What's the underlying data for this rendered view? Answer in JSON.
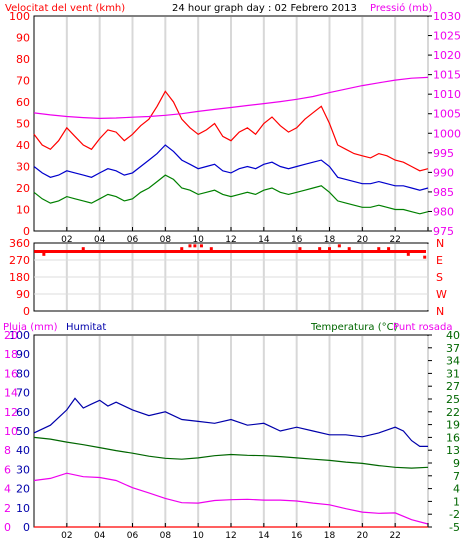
{
  "chart_data": [
    {
      "type": "line",
      "title": "24 hour graph day : 02 Febrero 2013",
      "left_axis_label": "Velocitat del vent (kmh)",
      "right_axis_label": "Pressió (mb)",
      "ylim_left": [
        0,
        100
      ],
      "ylim_right": [
        975,
        1030
      ],
      "left_ticks": [
        "0",
        "10",
        "20",
        "30",
        "40",
        "50",
        "60",
        "70",
        "80",
        "90",
        "100"
      ],
      "right_ticks": [
        "975",
        "980",
        "985",
        "990",
        "995",
        "1000",
        "1005",
        "1010",
        "1015",
        "1020",
        "1025",
        "1030"
      ],
      "x_ticks": [
        "02",
        "04",
        "06",
        "08",
        "10",
        "12",
        "14",
        "16",
        "18",
        "20",
        "22",
        ""
      ],
      "x_range_hours": [
        0,
        24
      ],
      "grid": true,
      "series": [
        {
          "key": "gust",
          "color": "#ff0000",
          "axis": "left",
          "x": [
            0,
            0.5,
            1,
            1.5,
            2,
            2.5,
            3,
            3.5,
            4,
            4.5,
            5,
            5.5,
            6,
            6.5,
            7,
            7.5,
            8,
            8.5,
            9,
            9.5,
            10,
            10.5,
            11,
            11.5,
            12,
            12.5,
            13,
            13.5,
            14,
            14.5,
            15,
            15.5,
            16,
            16.5,
            17,
            17.5,
            18,
            18.5,
            19,
            19.5,
            20,
            20.5,
            21,
            21.5,
            22,
            22.5,
            23,
            23.5,
            24
          ],
          "values": [
            45,
            40,
            38,
            42,
            48,
            44,
            40,
            38,
            43,
            47,
            46,
            42,
            45,
            49,
            52,
            58,
            65,
            60,
            52,
            48,
            45,
            47,
            50,
            44,
            42,
            46,
            48,
            45,
            50,
            53,
            49,
            46,
            48,
            52,
            55,
            58,
            50,
            40,
            38,
            36,
            35,
            34,
            36,
            35,
            33,
            32,
            30,
            28,
            29
          ]
        },
        {
          "key": "wind",
          "color": "#0000cc",
          "axis": "left",
          "x": [
            0,
            0.5,
            1,
            1.5,
            2,
            2.5,
            3,
            3.5,
            4,
            4.5,
            5,
            5.5,
            6,
            6.5,
            7,
            7.5,
            8,
            8.5,
            9,
            9.5,
            10,
            10.5,
            11,
            11.5,
            12,
            12.5,
            13,
            13.5,
            14,
            14.5,
            15,
            15.5,
            16,
            16.5,
            17,
            17.5,
            18,
            18.5,
            19,
            19.5,
            20,
            20.5,
            21,
            21.5,
            22,
            22.5,
            23,
            23.5,
            24
          ],
          "values": [
            30,
            27,
            25,
            26,
            28,
            27,
            26,
            25,
            27,
            29,
            28,
            26,
            27,
            30,
            33,
            36,
            40,
            37,
            33,
            31,
            29,
            30,
            31,
            28,
            27,
            29,
            30,
            29,
            31,
            32,
            30,
            29,
            30,
            31,
            32,
            33,
            30,
            25,
            24,
            23,
            22,
            22,
            23,
            22,
            21,
            21,
            20,
            19,
            20
          ]
        },
        {
          "key": "wind_low",
          "color": "#008000",
          "axis": "left",
          "x": [
            0,
            0.5,
            1,
            1.5,
            2,
            2.5,
            3,
            3.5,
            4,
            4.5,
            5,
            5.5,
            6,
            6.5,
            7,
            7.5,
            8,
            8.5,
            9,
            9.5,
            10,
            10.5,
            11,
            11.5,
            12,
            12.5,
            13,
            13.5,
            14,
            14.5,
            15,
            15.5,
            16,
            16.5,
            17,
            17.5,
            18,
            18.5,
            19,
            19.5,
            20,
            20.5,
            21,
            21.5,
            22,
            22.5,
            23,
            23.5,
            24
          ],
          "values": [
            18,
            15,
            13,
            14,
            16,
            15,
            14,
            13,
            15,
            17,
            16,
            14,
            15,
            18,
            20,
            23,
            26,
            24,
            20,
            19,
            17,
            18,
            19,
            17,
            16,
            17,
            18,
            17,
            19,
            20,
            18,
            17,
            18,
            19,
            20,
            21,
            18,
            14,
            13,
            12,
            11,
            11,
            12,
            11,
            10,
            10,
            9,
            8,
            9
          ]
        },
        {
          "key": "pressure",
          "color": "#ee00ee",
          "axis": "right",
          "x": [
            0,
            1,
            2,
            3,
            4,
            5,
            6,
            7,
            8,
            9,
            10,
            11,
            12,
            13,
            14,
            15,
            16,
            17,
            18,
            19,
            20,
            21,
            22,
            23,
            24
          ],
          "values": [
            1005.2,
            1004.7,
            1004.3,
            1004.0,
            1003.8,
            1003.9,
            1004.1,
            1004.3,
            1004.6,
            1005.0,
            1005.6,
            1006.1,
            1006.6,
            1007.1,
            1007.6,
            1008.1,
            1008.7,
            1009.4,
            1010.4,
            1011.3,
            1012.2,
            1012.9,
            1013.6,
            1014.1,
            1014.3
          ]
        }
      ]
    },
    {
      "type": "scatter",
      "ylabel_left_ticks": [
        "0",
        "90",
        "180",
        "270",
        "360"
      ],
      "ylabel_right_ticks": [
        "N",
        "W",
        "S",
        "E",
        "N"
      ],
      "ylim": [
        0,
        360
      ],
      "x_range_hours": [
        0,
        24
      ],
      "series": [
        {
          "key": "wind_dir",
          "color": "#ff0000",
          "x": [
            0.1,
            0.6,
            1.2,
            1.8,
            2.4,
            3.0,
            3.6,
            4.2,
            4.8,
            5.4,
            6.0,
            6.6,
            7.2,
            7.8,
            8.4,
            9.0,
            9.5,
            9.8,
            10.2,
            10.8,
            11.4,
            12.0,
            12.6,
            13.2,
            13.8,
            14.4,
            15.0,
            15.6,
            16.2,
            16.8,
            17.4,
            18.0,
            18.6,
            19.2,
            19.8,
            20.4,
            21.0,
            21.6,
            22.2,
            22.8,
            23.4,
            23.8
          ],
          "values": [
            315,
            300,
            315,
            315,
            315,
            330,
            315,
            315,
            315,
            315,
            315,
            315,
            315,
            315,
            315,
            330,
            345,
            345,
            345,
            330,
            315,
            315,
            315,
            315,
            315,
            315,
            315,
            315,
            330,
            315,
            330,
            330,
            345,
            330,
            315,
            315,
            330,
            330,
            315,
            300,
            315,
            285
          ]
        }
      ]
    },
    {
      "type": "line",
      "left_axis_labels": [
        "Pluja (mm)",
        "Humitat"
      ],
      "right_axis_labels": [
        "Temperatura (°C)",
        "Punt rosada"
      ],
      "humidity_ticks": [
        "0",
        "10",
        "20",
        "30",
        "40",
        "50",
        "60",
        "70",
        "80",
        "90",
        "100"
      ],
      "rain_ticks": [
        "0",
        "2",
        "4",
        "6",
        "8",
        "10",
        "12",
        "14",
        "16",
        "18",
        "20"
      ],
      "temp_ticks": [
        "-5",
        "-2",
        "1",
        "4",
        "7",
        "9",
        "13",
        "16",
        "19",
        "22",
        "25",
        "27",
        "31",
        "34",
        "37",
        "40"
      ],
      "ylim_humidity": [
        0,
        100
      ],
      "ylim_temp": [
        -5,
        40
      ],
      "x_ticks": [
        "02",
        "04",
        "06",
        "08",
        "10",
        "12",
        "14",
        "16",
        "18",
        "20",
        "22",
        ""
      ],
      "x_range_hours": [
        0,
        24
      ],
      "series": [
        {
          "key": "humidity",
          "color": "#0000aa",
          "axis": "humidity",
          "x": [
            0,
            1,
            2,
            2.5,
            3,
            3.5,
            4,
            4.5,
            5,
            6,
            7,
            8,
            9,
            10,
            11,
            12,
            13,
            14,
            15,
            16,
            17,
            18,
            19,
            20,
            21,
            22,
            22.5,
            23,
            23.5,
            24
          ],
          "values": [
            49,
            53,
            61,
            67,
            62,
            64,
            66,
            63,
            65,
            61,
            58,
            60,
            56,
            55,
            54,
            56,
            53,
            54,
            50,
            52,
            50,
            48,
            48,
            47,
            49,
            52,
            50,
            45,
            42,
            42
          ]
        },
        {
          "key": "temperature",
          "color": "#006600",
          "axis": "temp",
          "x": [
            0,
            1,
            2,
            3,
            4,
            5,
            6,
            7,
            8,
            9,
            10,
            11,
            12,
            13,
            14,
            15,
            16,
            17,
            18,
            19,
            20,
            21,
            22,
            23,
            24
          ],
          "values": [
            16.0,
            15.6,
            14.9,
            14.3,
            13.6,
            12.9,
            12.3,
            11.6,
            11.1,
            10.9,
            11.2,
            11.7,
            12.0,
            11.8,
            11.7,
            11.5,
            11.2,
            10.9,
            10.6,
            10.2,
            9.9,
            9.4,
            9.0,
            8.8,
            9.0
          ]
        },
        {
          "key": "dewpoint",
          "color": "#ee00ee",
          "axis": "temp",
          "x": [
            0,
            1,
            2,
            3,
            4,
            5,
            6,
            7,
            8,
            9,
            10,
            11,
            12,
            13,
            14,
            15,
            16,
            17,
            18,
            19,
            20,
            21,
            22,
            23,
            24
          ],
          "values": [
            5.9,
            6.4,
            7.6,
            6.8,
            6.6,
            5.9,
            4.2,
            3.0,
            1.7,
            0.7,
            0.6,
            1.2,
            1.4,
            1.5,
            1.3,
            1.3,
            1.1,
            0.6,
            0.2,
            -0.7,
            -1.5,
            -1.8,
            -1.7,
            -3.3,
            -4.3
          ]
        },
        {
          "key": "rain",
          "color": "#ff0000",
          "axis": "humidity",
          "x": [
            0,
            24
          ],
          "values": [
            0,
            0
          ]
        }
      ]
    }
  ]
}
